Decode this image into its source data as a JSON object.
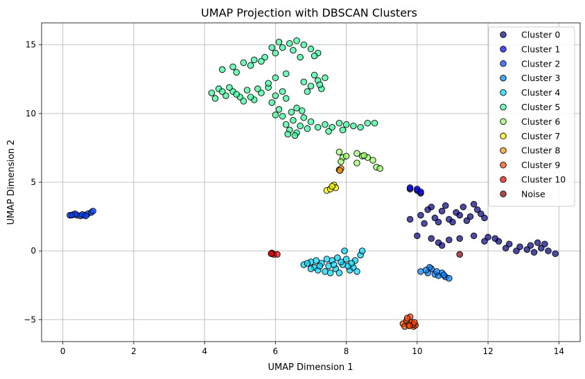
{
  "chart_data": {
    "type": "scatter",
    "title": "UMAP Projection with DBSCAN Clusters",
    "xlabel": "UMAP Dimension 1",
    "ylabel": "UMAP Dimension 2",
    "xlim": [
      -0.6,
      14.6
    ],
    "ylim": [
      -6.6,
      16.6
    ],
    "x_ticks": [
      0,
      2,
      4,
      6,
      8,
      10,
      12,
      14
    ],
    "y_ticks": [
      -5,
      0,
      5,
      10,
      15
    ],
    "x_tick_labels": [
      "0",
      "2",
      "4",
      "6",
      "8",
      "10",
      "12",
      "14"
    ],
    "y_tick_labels": [
      "−5",
      "0",
      "5",
      "10",
      "15"
    ],
    "grid": true,
    "legend_position": "top-right",
    "series": [
      {
        "name": "Cluster 0",
        "color": "#00007f",
        "points": [
          [
            9.8,
            2.3
          ],
          [
            10.1,
            2.6
          ],
          [
            10.3,
            3.0
          ],
          [
            10.5,
            2.4
          ],
          [
            10.7,
            2.9
          ],
          [
            10.9,
            2.3
          ],
          [
            11.1,
            2.8
          ],
          [
            11.3,
            3.2
          ],
          [
            11.5,
            2.5
          ],
          [
            11.7,
            3.0
          ],
          [
            11.9,
            2.4
          ],
          [
            10.2,
            2.0
          ],
          [
            10.6,
            2.1
          ],
          [
            11.0,
            2.1
          ],
          [
            11.4,
            2.2
          ],
          [
            11.8,
            2.7
          ],
          [
            10.4,
            3.2
          ],
          [
            10.8,
            3.3
          ],
          [
            11.6,
            3.4
          ],
          [
            11.2,
            2.6
          ],
          [
            10.4,
            0.9
          ],
          [
            10.6,
            0.6
          ],
          [
            10.9,
            0.8
          ],
          [
            11.2,
            0.9
          ],
          [
            11.6,
            1.1
          ],
          [
            12.0,
            1.0
          ],
          [
            12.3,
            0.7
          ],
          [
            12.6,
            0.5
          ],
          [
            12.9,
            0.3
          ],
          [
            13.1,
            0.1
          ],
          [
            13.3,
            -0.1
          ],
          [
            13.5,
            0.2
          ],
          [
            13.7,
            0.0
          ],
          [
            13.9,
            -0.2
          ],
          [
            12.8,
            0.0
          ],
          [
            13.2,
            0.4
          ],
          [
            13.6,
            0.5
          ],
          [
            12.2,
            0.9
          ],
          [
            11.9,
            0.7
          ],
          [
            10.7,
            0.4
          ],
          [
            9.8,
            4.5
          ],
          [
            10.0,
            4.4
          ],
          [
            10.1,
            4.2
          ],
          [
            10.0,
            1.1
          ],
          [
            12.5,
            0.2
          ],
          [
            13.4,
            0.6
          ]
        ]
      },
      {
        "name": "Cluster 1",
        "color": "#0000ff",
        "points": [
          [
            9.8,
            4.6
          ],
          [
            10.0,
            4.5
          ],
          [
            10.1,
            4.3
          ]
        ]
      },
      {
        "name": "Cluster 2",
        "color": "#0040ff",
        "points": [
          [
            0.2,
            2.6
          ],
          [
            0.3,
            2.65
          ],
          [
            0.4,
            2.6
          ],
          [
            0.5,
            2.55
          ],
          [
            0.6,
            2.6
          ],
          [
            0.7,
            2.7
          ],
          [
            0.8,
            2.8
          ],
          [
            0.85,
            2.9
          ],
          [
            0.35,
            2.7
          ],
          [
            0.55,
            2.65
          ],
          [
            0.65,
            2.55
          ],
          [
            0.25,
            2.6
          ]
        ]
      },
      {
        "name": "Cluster 3",
        "color": "#0080ff",
        "points": [
          [
            10.1,
            -1.5
          ],
          [
            10.3,
            -1.6
          ],
          [
            10.4,
            -1.3
          ],
          [
            10.5,
            -1.7
          ],
          [
            10.6,
            -1.8
          ],
          [
            10.7,
            -1.6
          ],
          [
            10.8,
            -1.9
          ],
          [
            10.9,
            -2.0
          ],
          [
            10.35,
            -1.2
          ],
          [
            10.55,
            -1.5
          ],
          [
            10.25,
            -1.4
          ],
          [
            10.75,
            -1.75
          ]
        ]
      },
      {
        "name": "Cluster 4",
        "color": "#00d4ff",
        "points": [
          [
            6.8,
            -1.0
          ],
          [
            7.0,
            -0.8
          ],
          [
            7.1,
            -1.2
          ],
          [
            7.2,
            -1.4
          ],
          [
            7.3,
            -0.9
          ],
          [
            7.4,
            -1.5
          ],
          [
            7.5,
            -1.1
          ],
          [
            7.6,
            -0.7
          ],
          [
            7.7,
            -1.3
          ],
          [
            7.8,
            -1.6
          ],
          [
            7.9,
            -1.0
          ],
          [
            8.0,
            -0.6
          ],
          [
            8.1,
            -1.4
          ],
          [
            8.2,
            -1.2
          ],
          [
            8.3,
            -1.5
          ],
          [
            8.4,
            -0.3
          ],
          [
            8.45,
            0.0
          ],
          [
            7.95,
            0.0
          ],
          [
            7.0,
            -1.3
          ],
          [
            7.25,
            -1.1
          ],
          [
            7.45,
            -0.6
          ],
          [
            7.65,
            -1.0
          ],
          [
            7.85,
            -0.8
          ],
          [
            8.05,
            -1.1
          ],
          [
            8.25,
            -0.7
          ],
          [
            7.55,
            -1.6
          ],
          [
            7.75,
            -0.5
          ],
          [
            7.15,
            -0.7
          ],
          [
            8.15,
            -0.9
          ],
          [
            6.9,
            -0.9
          ]
        ]
      },
      {
        "name": "Cluster 5",
        "color": "#33ff99",
        "points": [
          [
            4.2,
            11.5
          ],
          [
            4.4,
            11.8
          ],
          [
            4.6,
            11.3
          ],
          [
            4.8,
            11.6
          ],
          [
            5.0,
            11.2
          ],
          [
            5.2,
            11.7
          ],
          [
            5.4,
            11.0
          ],
          [
            5.6,
            11.5
          ],
          [
            5.8,
            11.9
          ],
          [
            6.0,
            11.3
          ],
          [
            6.2,
            11.6
          ],
          [
            4.3,
            11.1
          ],
          [
            4.7,
            11.9
          ],
          [
            5.1,
            10.9
          ],
          [
            5.5,
            11.8
          ],
          [
            5.9,
            10.8
          ],
          [
            6.3,
            11.1
          ],
          [
            4.5,
            11.6
          ],
          [
            4.9,
            11.4
          ],
          [
            5.3,
            11.2
          ],
          [
            4.5,
            13.2
          ],
          [
            4.8,
            13.4
          ],
          [
            5.1,
            13.7
          ],
          [
            5.4,
            13.9
          ],
          [
            5.7,
            14.1
          ],
          [
            6.0,
            14.4
          ],
          [
            6.2,
            14.8
          ],
          [
            6.4,
            15.1
          ],
          [
            6.6,
            15.3
          ],
          [
            6.8,
            15.0
          ],
          [
            7.0,
            14.7
          ],
          [
            7.2,
            14.4
          ],
          [
            5.9,
            14.8
          ],
          [
            6.1,
            15.2
          ],
          [
            6.5,
            14.6
          ],
          [
            6.7,
            14.1
          ],
          [
            7.1,
            14.2
          ],
          [
            5.3,
            13.5
          ],
          [
            5.6,
            13.8
          ],
          [
            4.9,
            13.0
          ],
          [
            6.8,
            12.3
          ],
          [
            7.0,
            12.0
          ],
          [
            7.2,
            12.4
          ],
          [
            7.3,
            11.8
          ],
          [
            7.4,
            12.6
          ],
          [
            6.9,
            11.6
          ],
          [
            7.1,
            12.8
          ],
          [
            7.25,
            12.1
          ],
          [
            6.2,
            9.8
          ],
          [
            6.3,
            9.2
          ],
          [
            6.4,
            8.8
          ],
          [
            6.5,
            9.5
          ],
          [
            6.6,
            8.6
          ],
          [
            6.7,
            9.1
          ],
          [
            6.8,
            9.7
          ],
          [
            6.9,
            8.9
          ],
          [
            7.0,
            9.4
          ],
          [
            7.2,
            9.0
          ],
          [
            7.4,
            9.2
          ],
          [
            7.6,
            9.0
          ],
          [
            7.8,
            9.3
          ],
          [
            8.0,
            9.2
          ],
          [
            8.2,
            9.1
          ],
          [
            8.4,
            9.0
          ],
          [
            8.6,
            9.3
          ],
          [
            8.8,
            9.3
          ],
          [
            6.35,
            8.5
          ],
          [
            6.55,
            8.4
          ],
          [
            6.0,
            9.9
          ],
          [
            6.1,
            10.3
          ],
          [
            6.0,
            12.6
          ],
          [
            6.3,
            12.9
          ],
          [
            5.8,
            12.2
          ],
          [
            6.6,
            10.4
          ],
          [
            7.5,
            8.7
          ],
          [
            7.9,
            8.8
          ],
          [
            6.45,
            10.1
          ],
          [
            6.75,
            10.2
          ]
        ]
      },
      {
        "name": "Cluster 6",
        "color": "#99ff66",
        "points": [
          [
            7.8,
            7.2
          ],
          [
            7.9,
            6.8
          ],
          [
            8.0,
            6.9
          ],
          [
            7.85,
            6.5
          ],
          [
            8.3,
            7.1
          ],
          [
            8.45,
            6.9
          ],
          [
            8.6,
            6.8
          ],
          [
            8.75,
            6.6
          ],
          [
            8.3,
            6.4
          ],
          [
            8.85,
            6.1
          ],
          [
            8.95,
            6.0
          ],
          [
            8.5,
            6.95
          ]
        ]
      },
      {
        "name": "Cluster 7",
        "color": "#ffff00",
        "points": [
          [
            7.45,
            4.4
          ],
          [
            7.55,
            4.5
          ],
          [
            7.65,
            4.8
          ],
          [
            7.7,
            4.6
          ],
          [
            7.6,
            4.7
          ]
        ]
      },
      {
        "name": "Cluster 8",
        "color": "#ff9900",
        "points": [
          [
            7.8,
            5.9
          ],
          [
            7.85,
            6.0
          ],
          [
            7.82,
            5.85
          ]
        ]
      },
      {
        "name": "Cluster 9",
        "color": "#ff4400",
        "points": [
          [
            9.6,
            -5.3
          ],
          [
            9.7,
            -5.1
          ],
          [
            9.75,
            -5.4
          ],
          [
            9.8,
            -4.8
          ],
          [
            9.85,
            -5.2
          ],
          [
            9.9,
            -5.5
          ],
          [
            9.95,
            -5.4
          ],
          [
            9.65,
            -5.5
          ],
          [
            9.72,
            -4.9
          ],
          [
            9.88,
            -5.35
          ],
          [
            9.78,
            -5.45
          ],
          [
            9.92,
            -5.2
          ]
        ]
      },
      {
        "name": "Cluster 10",
        "color": "#e60000",
        "points": [
          [
            5.9,
            -0.15
          ],
          [
            5.95,
            -0.25
          ],
          [
            6.05,
            -0.25
          ],
          [
            5.88,
            -0.2
          ]
        ]
      },
      {
        "name": "Noise",
        "color": "#800000",
        "points": [
          [
            11.2,
            -0.25
          ]
        ]
      }
    ]
  }
}
